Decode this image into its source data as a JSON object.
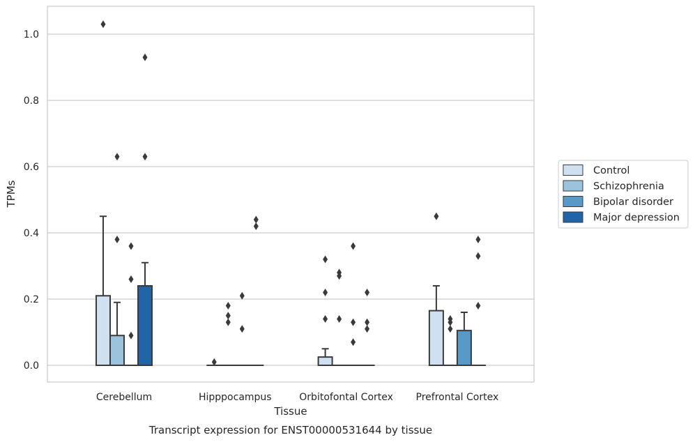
{
  "chart_data": {
    "type": "bar",
    "caption": "Transcript expression for ENST00000531644 by tissue",
    "xlabel": "Tissue",
    "ylabel": "TPMs",
    "ylim": [
      -0.05,
      1.08
    ],
    "yticks": [
      0.0,
      0.2,
      0.4,
      0.6,
      0.8,
      1.0
    ],
    "ytick_labels": [
      "0.0",
      "0.2",
      "0.4",
      "0.6",
      "0.8",
      "1.0"
    ],
    "grid": "horizontal",
    "legend_position": "right",
    "categories": [
      "Cerebellum",
      "Hipppocampus",
      "Orbitofontal Cortex",
      "Prefrontal Cortex"
    ],
    "series": [
      {
        "name": "Control",
        "color": "#cfe1f0",
        "values": [
          0.21,
          0.0,
          0.025,
          0.165
        ],
        "error_upper": [
          0.45,
          null,
          0.05,
          0.24
        ],
        "outliers": [
          [
            1.03
          ],
          [
            0.01
          ],
          [
            0.32,
            0.22,
            0.14
          ],
          [
            0.45
          ]
        ]
      },
      {
        "name": "Schizophrenia",
        "color": "#9bc3dd",
        "values": [
          0.09,
          0.0,
          0.0,
          0.0
        ],
        "error_upper": [
          0.19,
          null,
          null,
          null
        ],
        "outliers": [
          [
            0.63,
            0.38
          ],
          [
            0.18,
            0.15,
            0.13
          ],
          [
            0.28,
            0.27,
            0.14
          ],
          [
            0.14,
            0.13,
            0.11
          ]
        ]
      },
      {
        "name": "Bipolar disorder",
        "color": "#5799c8",
        "values": [
          0.0,
          0.0,
          0.0,
          0.105
        ],
        "error_upper": [
          null,
          null,
          null,
          0.16
        ],
        "outliers": [
          [
            0.36,
            0.26,
            0.09
          ],
          [
            0.21,
            0.11
          ],
          [
            0.36,
            0.13,
            0.07
          ],
          []
        ]
      },
      {
        "name": "Major depression",
        "color": "#2164a7",
        "values": [
          0.24,
          0.0,
          0.0,
          0.0
        ],
        "error_upper": [
          0.31,
          null,
          null,
          null
        ],
        "outliers": [
          [
            0.93,
            0.63
          ],
          [
            0.44,
            0.42
          ],
          [
            0.22,
            0.13,
            0.11
          ],
          [
            0.38,
            0.33,
            0.18
          ]
        ]
      }
    ]
  }
}
